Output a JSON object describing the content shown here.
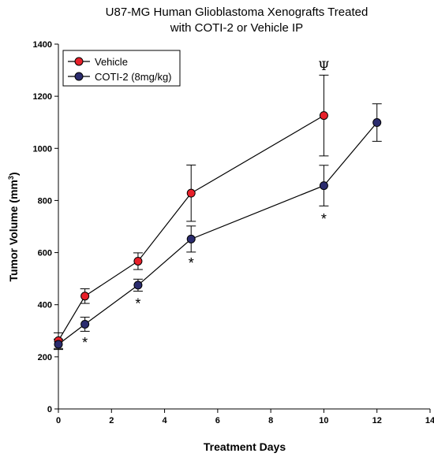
{
  "chart_data": {
    "type": "line",
    "title": [
      "U87-MG Human Glioblastoma Xenografts Treated",
      "with COTI-2 or Vehicle IP"
    ],
    "xlabel": "Treatment Days",
    "ylabel": "Tumor Volume (mm",
    "ylabel_sup": "3",
    "ylabel_end": ")",
    "xlim": [
      0,
      14
    ],
    "ylim": [
      0,
      1400
    ],
    "xticks": [
      "0",
      "2",
      "4",
      "6",
      "8",
      "10",
      "12",
      "14"
    ],
    "yticks": [
      "0",
      "200",
      "400",
      "600",
      "800",
      "1000",
      "1200",
      "1400"
    ],
    "grid": false,
    "legend": "top-left",
    "series": [
      {
        "name": "Vehicle",
        "color": "#e8202a",
        "x": [
          0,
          1,
          3,
          5,
          10
        ],
        "y": [
          262,
          433,
          567,
          828,
          1126
        ],
        "err": [
          30,
          28,
          32,
          108,
          155
        ]
      },
      {
        "name": "COTI-2 (8mg/kg)",
        "color": "#2b2c6e",
        "x": [
          0,
          1,
          3,
          5,
          10,
          12
        ],
        "y": [
          248,
          325,
          475,
          652,
          857,
          1099
        ],
        "err": [
          20,
          27,
          23,
          50,
          78,
          72
        ]
      }
    ],
    "annotations": [
      {
        "text": "*",
        "x": 1,
        "y": 260
      },
      {
        "text": "*",
        "x": 3,
        "y": 410
      },
      {
        "text": "*",
        "x": 5,
        "y": 565
      },
      {
        "text": "*",
        "x": 10,
        "y": 735
      },
      {
        "text": "Ψ",
        "x": 10,
        "y": 1300
      }
    ]
  }
}
